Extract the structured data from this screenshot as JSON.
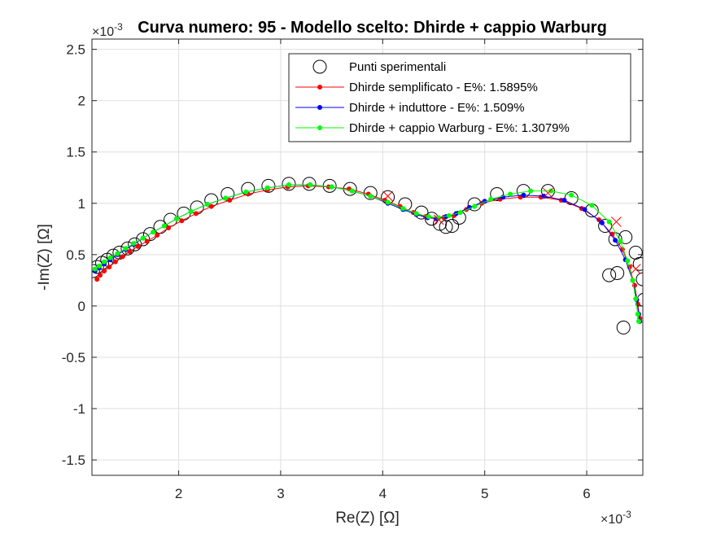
{
  "chart_data": {
    "type": "line",
    "title": "Curva numero: 95 - Modello scelto: Dhirde + cappio Warburg",
    "xlabel": "Re(Z) [Ω]",
    "ylabel": "-Im(Z) [Ω]",
    "x_exponent_label": "×10",
    "x_exponent_power": "-3",
    "y_exponent_label": "×10",
    "y_exponent_power": "-3",
    "xlim": [
      1.15,
      6.55
    ],
    "ylim": [
      -1.65,
      2.6
    ],
    "x_ticks": [
      2,
      3,
      4,
      5,
      6
    ],
    "x_tick_labels": [
      "2",
      "3",
      "4",
      "5",
      "6"
    ],
    "y_ticks": [
      -1.5,
      -1,
      -0.5,
      0,
      0.5,
      1,
      1.5,
      2,
      2.5
    ],
    "y_tick_labels": [
      "-1.5",
      "-1",
      "-0.5",
      "0",
      "0.5",
      "1",
      "1.5",
      "2",
      "2.5"
    ],
    "grid": true,
    "legend_position": "top-right",
    "series": [
      {
        "name": "Punti sperimentali",
        "style": "markers",
        "marker": "open-circle",
        "color": "#000000",
        "x": [
          1.16,
          1.2,
          1.25,
          1.3,
          1.36,
          1.42,
          1.5,
          1.57,
          1.65,
          1.72,
          1.82,
          1.92,
          2.05,
          2.18,
          2.32,
          2.48,
          2.68,
          2.88,
          3.08,
          3.28,
          3.48,
          3.68,
          3.88,
          4.05,
          4.22,
          4.38,
          4.48,
          4.56,
          4.62,
          4.68,
          4.75,
          4.9,
          5.12,
          5.38,
          5.62,
          5.85,
          6.05,
          6.18,
          6.22,
          6.28,
          6.3,
          6.38,
          6.48,
          6.52,
          6.55,
          6.56,
          6.36
        ],
        "y": [
          0.34,
          0.38,
          0.42,
          0.45,
          0.49,
          0.52,
          0.56,
          0.6,
          0.65,
          0.7,
          0.77,
          0.84,
          0.9,
          0.96,
          1.03,
          1.09,
          1.14,
          1.17,
          1.19,
          1.19,
          1.17,
          1.14,
          1.1,
          1.06,
          0.99,
          0.91,
          0.85,
          0.8,
          0.77,
          0.78,
          0.86,
          0.99,
          1.09,
          1.12,
          1.12,
          1.05,
          0.93,
          0.78,
          0.3,
          0.65,
          0.32,
          0.67,
          0.52,
          0.41,
          0.26,
          0.06,
          -0.21
        ]
      },
      {
        "name": "Dhirde semplificato - E%: 1.5895%",
        "style": "line-markers",
        "color": "#ff0000",
        "x": [
          1.2,
          1.23,
          1.27,
          1.32,
          1.38,
          1.45,
          1.52,
          1.6,
          1.69,
          1.79,
          1.9,
          2.03,
          2.17,
          2.32,
          2.5,
          2.68,
          2.87,
          3.07,
          3.27,
          3.47,
          3.67,
          3.86,
          4.02,
          4.17,
          4.3,
          4.42,
          4.52,
          4.6,
          4.7,
          4.82,
          4.97,
          5.15,
          5.35,
          5.55,
          5.75,
          5.95,
          6.12,
          6.25,
          6.35,
          6.42,
          6.47,
          6.5,
          6.52
        ],
        "y": [
          0.26,
          0.3,
          0.34,
          0.38,
          0.43,
          0.48,
          0.53,
          0.58,
          0.63,
          0.69,
          0.76,
          0.83,
          0.9,
          0.97,
          1.03,
          1.09,
          1.13,
          1.16,
          1.17,
          1.16,
          1.14,
          1.09,
          1.03,
          0.97,
          0.91,
          0.87,
          0.85,
          0.86,
          0.88,
          0.94,
          1.0,
          1.04,
          1.06,
          1.06,
          1.03,
          0.95,
          0.84,
          0.7,
          0.55,
          0.38,
          0.2,
          0.02,
          -0.12
        ]
      },
      {
        "name": "Dhirde + induttore - E%: 1.509%",
        "style": "line-markers",
        "color": "#0000ff",
        "x": [
          1.18,
          1.22,
          1.27,
          1.33,
          1.4,
          1.48,
          1.56,
          1.65,
          1.75,
          1.86,
          1.98,
          2.12,
          2.28,
          2.46,
          2.66,
          2.87,
          3.08,
          3.29,
          3.5,
          3.7,
          3.88,
          4.05,
          4.2,
          4.33,
          4.44,
          4.53,
          4.62,
          4.72,
          4.85,
          5.0,
          5.18,
          5.38,
          5.58,
          5.78,
          5.98,
          6.15,
          6.28,
          6.38,
          6.45,
          6.49,
          6.51,
          6.52
        ],
        "y": [
          0.34,
          0.37,
          0.41,
          0.45,
          0.5,
          0.55,
          0.6,
          0.66,
          0.72,
          0.78,
          0.85,
          0.92,
          0.99,
          1.05,
          1.11,
          1.15,
          1.18,
          1.18,
          1.16,
          1.12,
          1.07,
          1.0,
          0.94,
          0.89,
          0.86,
          0.85,
          0.87,
          0.9,
          0.96,
          1.02,
          1.06,
          1.08,
          1.07,
          1.03,
          0.94,
          0.81,
          0.64,
          0.45,
          0.25,
          0.06,
          -0.08,
          -0.15
        ]
      },
      {
        "name": "Dhirde + cappio Warburg - E%: 1.3079%",
        "style": "line-markers",
        "color": "#00ff00",
        "x": [
          1.18,
          1.22,
          1.27,
          1.33,
          1.4,
          1.48,
          1.56,
          1.65,
          1.75,
          1.86,
          1.98,
          2.12,
          2.28,
          2.46,
          2.66,
          2.87,
          3.08,
          3.29,
          3.5,
          3.7,
          3.88,
          4.05,
          4.2,
          4.33,
          4.45,
          4.55,
          4.65,
          4.76,
          4.9,
          5.06,
          5.25,
          5.45,
          5.65,
          5.85,
          6.05,
          6.22,
          6.33,
          6.4,
          6.45,
          6.48,
          6.5,
          6.51
        ],
        "y": [
          0.36,
          0.39,
          0.43,
          0.47,
          0.51,
          0.56,
          0.61,
          0.66,
          0.72,
          0.78,
          0.85,
          0.92,
          0.99,
          1.05,
          1.11,
          1.15,
          1.18,
          1.18,
          1.16,
          1.12,
          1.07,
          1.01,
          0.95,
          0.9,
          0.87,
          0.86,
          0.88,
          0.91,
          0.97,
          1.04,
          1.09,
          1.12,
          1.12,
          1.08,
          0.98,
          0.82,
          0.63,
          0.44,
          0.25,
          0.07,
          -0.08,
          -0.15
        ]
      }
    ],
    "annotations": [
      {
        "type": "cross-marker",
        "color": "#ff0000",
        "x": 4.05,
        "y": 1.07
      },
      {
        "type": "cross-marker",
        "color": "#ff0000",
        "x": 4.55,
        "y": 0.84
      },
      {
        "type": "cross-marker",
        "color": "#ff0000",
        "x": 5.62,
        "y": 1.1
      },
      {
        "type": "cross-marker",
        "color": "#ff0000",
        "x": 6.29,
        "y": 0.82
      },
      {
        "type": "cross-marker",
        "color": "#ff0000",
        "x": 6.48,
        "y": 0.36
      }
    ]
  }
}
